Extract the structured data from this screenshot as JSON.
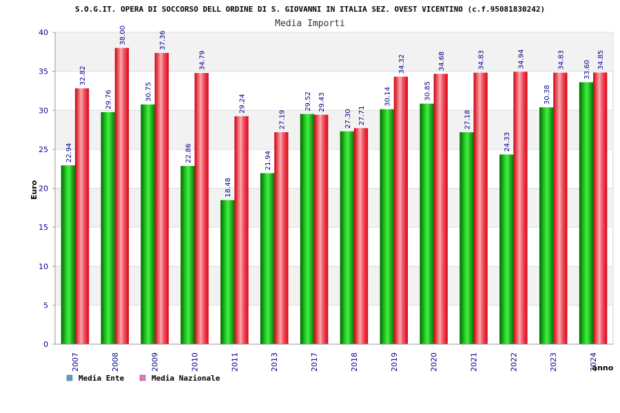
{
  "chart_data": {
    "type": "bar",
    "title": "S.O.G.IT. OPERA DI SOCCORSO DELL ORDINE DI S. GIOVANNI IN ITALIA SEZ. OVEST VICENTINO (c.f.95081830242)",
    "subtitle": "Media Importi",
    "xlabel": "anno",
    "ylabel": "Euro",
    "ylim": [
      0,
      40
    ],
    "yticks": [
      0,
      5,
      10,
      15,
      20,
      25,
      30,
      35,
      40
    ],
    "grid": true,
    "legend_position": "bottom-left",
    "categories": [
      "2007",
      "2008",
      "2009",
      "2010",
      "2011",
      "2013",
      "2017",
      "2018",
      "2019",
      "2020",
      "2021",
      "2022",
      "2023",
      "2024"
    ],
    "series": [
      {
        "name": "Media Ente",
        "color": "#00aa00",
        "legend_color": "#5b9bd5",
        "values": [
          22.94,
          29.76,
          30.75,
          22.86,
          18.48,
          21.94,
          29.52,
          27.3,
          30.14,
          30.85,
          27.18,
          24.33,
          30.38,
          33.6
        ],
        "labels": [
          "22.94",
          "29.76",
          "30.75",
          "22.86",
          "18.48",
          "21.94",
          "29.52",
          "27.30",
          "30.14",
          "30.85",
          "27.18",
          "24.33",
          "30.38",
          "33.60"
        ]
      },
      {
        "name": "Media Nazionale",
        "color": "#ee1122",
        "legend_color": "#e377c2",
        "values": [
          32.82,
          38.0,
          37.36,
          34.79,
          29.24,
          27.19,
          29.43,
          27.71,
          34.32,
          34.68,
          34.83,
          34.94,
          34.83,
          34.85
        ],
        "labels": [
          "32.82",
          "38.00",
          "37.36",
          "34.79",
          "29.24",
          "27.19",
          "29.43",
          "27.71",
          "34.32",
          "34.68",
          "34.83",
          "34.94",
          "34.83",
          "34.85"
        ]
      }
    ]
  }
}
